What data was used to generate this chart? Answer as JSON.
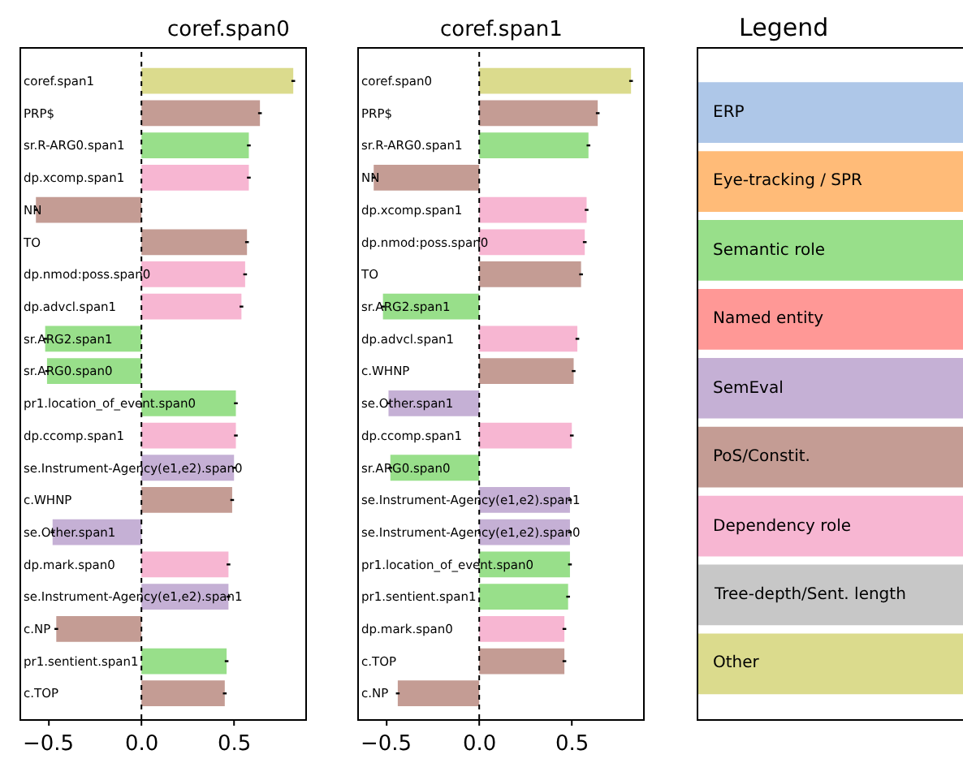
{
  "chart_data": [
    {
      "type": "bar",
      "orientation": "horizontal",
      "title": "coref.span0",
      "categories": [
        "coref.span1",
        "PRP$",
        "sr.R-ARG0.span1",
        "dp.xcomp.span1",
        "NN",
        "TO",
        "dp.nmod:poss.span0",
        "dp.advcl.span1",
        "sr.ARG2.span1",
        "sr.ARG0.span0",
        "pr1.location_of_event.span0",
        "dp.ccomp.span1",
        "se.Instrument-Agency(e1,e2).span0",
        "c.WHNP",
        "se.Other.span1",
        "dp.mark.span0",
        "se.Instrument-Agency(e1,e2).span1",
        "c.NP",
        "pr1.sentient.span1",
        "c.TOP"
      ],
      "values": [
        0.82,
        0.64,
        0.58,
        0.58,
        -0.57,
        0.57,
        0.56,
        0.54,
        -0.52,
        -0.51,
        0.51,
        0.51,
        0.5,
        0.49,
        -0.48,
        0.47,
        0.47,
        -0.46,
        0.46,
        0.45
      ],
      "colors": [
        "#dbdb8d",
        "#c49c94",
        "#98df8a",
        "#f7b6d2",
        "#c49c94",
        "#c49c94",
        "#f7b6d2",
        "#f7b6d2",
        "#98df8a",
        "#98df8a",
        "#98df8a",
        "#f7b6d2",
        "#c5b0d5",
        "#c49c94",
        "#c5b0d5",
        "#f7b6d2",
        "#c5b0d5",
        "#c49c94",
        "#98df8a",
        "#c49c94"
      ],
      "errors": [
        0.01,
        0.01,
        0.01,
        0.01,
        0.01,
        0.01,
        0.01,
        0.01,
        0.01,
        0.01,
        0.01,
        0.01,
        0.01,
        0.01,
        0.01,
        0.01,
        0.01,
        0.01,
        0.01,
        0.01
      ],
      "xlim": [
        -0.65,
        0.885
      ],
      "xticks": [
        {
          "value": -0.5,
          "label": "−0.5"
        },
        {
          "value": 0,
          "label": "0.0"
        },
        {
          "value": 0.5,
          "label": "0.5"
        }
      ],
      "ref_lines": [
        {
          "axis": "x",
          "value": 0,
          "color": "#000000",
          "line_style": "dotted"
        }
      ]
    },
    {
      "type": "bar",
      "orientation": "horizontal",
      "title": "coref.span1",
      "categories": [
        "coref.span0",
        "PRP$",
        "sr.R-ARG0.span1",
        "NN",
        "dp.xcomp.span1",
        "dp.nmod:poss.span0",
        "TO",
        "sr.ARG2.span1",
        "dp.advcl.span1",
        "c.WHNP",
        "se.Other.span1",
        "dp.ccomp.span1",
        "sr.ARG0.span0",
        "se.Instrument-Agency(e1,e2).span1",
        "se.Instrument-Agency(e1,e2).span0",
        "pr1.location_of_event.span0",
        "pr1.sentient.span1",
        "dp.mark.span0",
        "c.TOP",
        "c.NP"
      ],
      "values": [
        0.82,
        0.64,
        0.59,
        -0.57,
        0.58,
        0.57,
        0.55,
        -0.52,
        0.53,
        0.51,
        -0.49,
        0.5,
        -0.48,
        0.49,
        0.49,
        0.49,
        0.48,
        0.46,
        0.46,
        -0.44
      ],
      "colors": [
        "#dbdb8d",
        "#c49c94",
        "#98df8a",
        "#c49c94",
        "#f7b6d2",
        "#f7b6d2",
        "#c49c94",
        "#98df8a",
        "#f7b6d2",
        "#c49c94",
        "#c5b0d5",
        "#f7b6d2",
        "#98df8a",
        "#c5b0d5",
        "#c5b0d5",
        "#98df8a",
        "#98df8a",
        "#f7b6d2",
        "#c49c94",
        "#c49c94"
      ],
      "errors": [
        0.01,
        0.01,
        0.01,
        0.01,
        0.01,
        0.01,
        0.01,
        0.01,
        0.01,
        0.01,
        0.01,
        0.01,
        0.01,
        0.01,
        0.01,
        0.01,
        0.01,
        0.01,
        0.01,
        0.01
      ],
      "xlim": [
        -0.65,
        0.885
      ],
      "xticks": [
        {
          "value": -0.5,
          "label": "−0.5"
        },
        {
          "value": 0,
          "label": "0.0"
        },
        {
          "value": 0.5,
          "label": "0.5"
        }
      ],
      "ref_lines": [
        {
          "axis": "x",
          "value": 0,
          "color": "#000000",
          "line_style": "dotted"
        }
      ]
    },
    {
      "type": "other",
      "title": "Legend",
      "categories": [
        "ERP",
        "Eye-tracking / SPR",
        "Semantic role",
        "Named entity",
        "SemEval",
        "PoS/Constit.",
        "Dependency role",
        "Tree-depth/Sent. length",
        "Other"
      ],
      "colors": [
        "#aec7e8",
        "#ffbb78",
        "#98df8a",
        "#ff9896",
        "#c5b0d5",
        "#c49c94",
        "#f7b6d2",
        "#c7c7c7",
        "#dbdb8d"
      ]
    }
  ]
}
